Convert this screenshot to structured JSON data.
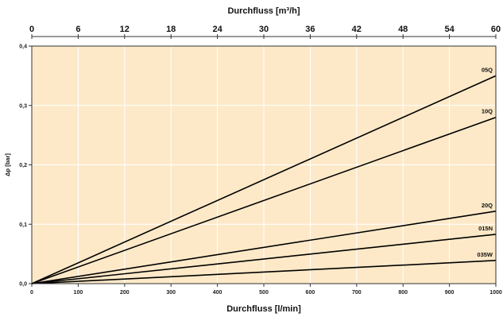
{
  "chart_data": {
    "type": "line",
    "title": "",
    "xlabel": "Durchfluss [l/min]",
    "x2label": "Durchfluss [m³/h]",
    "ylabel": "Δp [bar]",
    "xlim": [
      0,
      1000
    ],
    "x2lim": [
      0,
      60
    ],
    "ylim": [
      0,
      0.4
    ],
    "grid": true,
    "legend": "none",
    "background_color": "#fde9c8",
    "line_color": "#000000",
    "x_ticks": [
      "0",
      "100",
      "200",
      "300",
      "400",
      "500",
      "600",
      "700",
      "800",
      "900",
      "1000"
    ],
    "x2_ticks": [
      "0",
      "6",
      "12",
      "18",
      "24",
      "30",
      "36",
      "42",
      "48",
      "54",
      "60"
    ],
    "y_ticks": [
      "0,0",
      "0,1",
      "0,2",
      "0,3",
      "0,4"
    ],
    "series": [
      {
        "name": "05Q",
        "x": [
          0,
          1000
        ],
        "y": [
          0,
          0.35
        ]
      },
      {
        "name": "10Q",
        "x": [
          0,
          1000
        ],
        "y": [
          0,
          0.28
        ]
      },
      {
        "name": "20Q",
        "x": [
          0,
          1000
        ],
        "y": [
          0,
          0.122
        ]
      },
      {
        "name": "015N",
        "x": [
          0,
          1000
        ],
        "y": [
          0,
          0.083
        ]
      },
      {
        "name": "035W",
        "x": [
          0,
          1000
        ],
        "y": [
          0,
          0.039
        ]
      }
    ]
  }
}
